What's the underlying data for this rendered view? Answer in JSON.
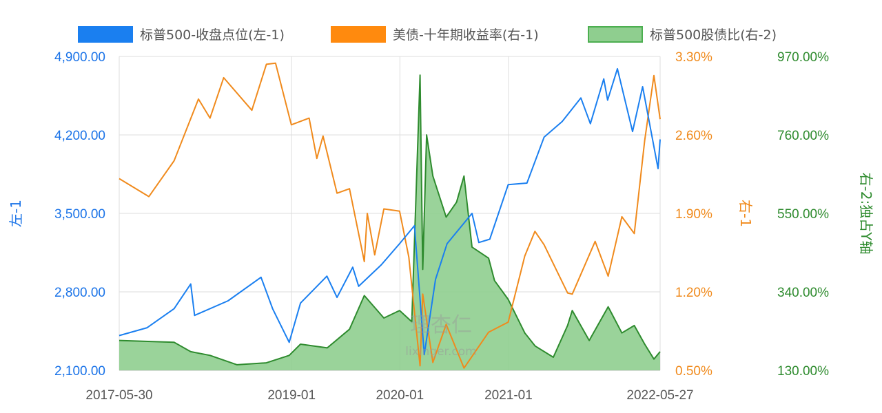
{
  "chart_data": {
    "type": "line",
    "legend_placement": "top",
    "grid": true,
    "x_ticks": [
      "2017-05-30",
      "2019-01",
      "2020-01",
      "2021-01",
      "2022-05-27"
    ],
    "x_range": [
      "2017-05-30",
      "2022-05-27"
    ],
    "axes": {
      "left": {
        "label": "左-1",
        "range": [
          2100,
          4900
        ],
        "ticks": [
          "2,100.00",
          "2,800.00",
          "3,500.00",
          "4,200.00",
          "4,900.00"
        ],
        "color": "#1a73e8"
      },
      "right1": {
        "label": "右-1",
        "range": [
          0.5,
          3.3
        ],
        "ticks": [
          "0.50%",
          "1.20%",
          "1.90%",
          "2.60%",
          "3.30%"
        ],
        "color": "#f08a1c"
      },
      "right2": {
        "label": "右-2:独占Y轴",
        "range": [
          130,
          970
        ],
        "ticks": [
          "130.00%",
          "340.00%",
          "550.00%",
          "760.00%",
          "970.00%"
        ],
        "color": "#2e8b2e"
      }
    },
    "series": [
      {
        "name": "标普500-收盘点位(左-1)",
        "axis": "left",
        "kind": "line",
        "color": "#1a7ff0",
        "points": [
          [
            "2017-05-30",
            2410
          ],
          [
            "2017-09-01",
            2480
          ],
          [
            "2017-12-01",
            2650
          ],
          [
            "2018-01-26",
            2870
          ],
          [
            "2018-02-08",
            2590
          ],
          [
            "2018-06-01",
            2720
          ],
          [
            "2018-09-20",
            2930
          ],
          [
            "2018-10-29",
            2650
          ],
          [
            "2018-12-24",
            2350
          ],
          [
            "2019-01-31",
            2700
          ],
          [
            "2019-04-30",
            2940
          ],
          [
            "2019-06-03",
            2750
          ],
          [
            "2019-07-26",
            3020
          ],
          [
            "2019-08-15",
            2850
          ],
          [
            "2019-10-30",
            3040
          ],
          [
            "2019-12-31",
            3230
          ],
          [
            "2020-02-19",
            3390
          ],
          [
            "2020-03-23",
            2240
          ],
          [
            "2020-04-30",
            2910
          ],
          [
            "2020-06-08",
            3230
          ],
          [
            "2020-08-31",
            3500
          ],
          [
            "2020-09-23",
            3240
          ],
          [
            "2020-10-30",
            3270
          ],
          [
            "2020-12-31",
            3756
          ],
          [
            "2021-03-04",
            3770
          ],
          [
            "2021-05-01",
            4180
          ],
          [
            "2021-07-01",
            4320
          ],
          [
            "2021-09-02",
            4530
          ],
          [
            "2021-10-04",
            4300
          ],
          [
            "2021-11-18",
            4700
          ],
          [
            "2021-12-01",
            4510
          ],
          [
            "2022-01-03",
            4790
          ],
          [
            "2022-02-23",
            4230
          ],
          [
            "2022-03-29",
            4630
          ],
          [
            "2022-05-20",
            3900
          ],
          [
            "2022-05-27",
            4160
          ]
        ]
      },
      {
        "name": "美债-十年期收益率(右-1)",
        "axis": "right1",
        "kind": "line",
        "color": "#f08a1c",
        "points": [
          [
            "2017-05-30",
            2.21
          ],
          [
            "2017-09-07",
            2.05
          ],
          [
            "2017-12-01",
            2.37
          ],
          [
            "2018-02-21",
            2.92
          ],
          [
            "2018-04-01",
            2.75
          ],
          [
            "2018-05-17",
            3.11
          ],
          [
            "2018-08-20",
            2.82
          ],
          [
            "2018-10-08",
            3.23
          ],
          [
            "2018-11-08",
            3.24
          ],
          [
            "2018-12-31",
            2.69
          ],
          [
            "2019-03-01",
            2.75
          ],
          [
            "2019-03-27",
            2.39
          ],
          [
            "2019-04-17",
            2.59
          ],
          [
            "2019-06-03",
            2.08
          ],
          [
            "2019-07-15",
            2.12
          ],
          [
            "2019-09-03",
            1.47
          ],
          [
            "2019-09-13",
            1.9
          ],
          [
            "2019-10-08",
            1.53
          ],
          [
            "2019-11-08",
            1.94
          ],
          [
            "2019-12-31",
            1.92
          ],
          [
            "2020-01-31",
            1.51
          ],
          [
            "2020-03-09",
            0.54
          ],
          [
            "2020-03-18",
            1.18
          ],
          [
            "2020-04-21",
            0.57
          ],
          [
            "2020-06-05",
            0.91
          ],
          [
            "2020-08-04",
            0.52
          ],
          [
            "2020-10-26",
            0.84
          ],
          [
            "2020-12-31",
            0.93
          ],
          [
            "2021-02-25",
            1.52
          ],
          [
            "2021-03-31",
            1.74
          ],
          [
            "2021-05-01",
            1.62
          ],
          [
            "2021-07-19",
            1.19
          ],
          [
            "2021-08-04",
            1.18
          ],
          [
            "2021-10-20",
            1.65
          ],
          [
            "2021-12-03",
            1.34
          ],
          [
            "2022-01-18",
            1.87
          ],
          [
            "2022-03-01",
            1.72
          ],
          [
            "2022-04-05",
            2.55
          ],
          [
            "2022-05-06",
            3.13
          ],
          [
            "2022-05-27",
            2.74
          ]
        ]
      },
      {
        "name": "标普500股债比(右-2)",
        "axis": "right2",
        "kind": "area",
        "color": "#2e8b2e",
        "fill": "#8fce8f",
        "points": [
          [
            "2017-05-30",
            210
          ],
          [
            "2017-12-01",
            205
          ],
          [
            "2018-01-26",
            180
          ],
          [
            "2018-04-01",
            170
          ],
          [
            "2018-07-01",
            145
          ],
          [
            "2018-10-08",
            150
          ],
          [
            "2018-12-24",
            170
          ],
          [
            "2019-01-31",
            200
          ],
          [
            "2019-05-01",
            190
          ],
          [
            "2019-07-15",
            240
          ],
          [
            "2019-09-03",
            330
          ],
          [
            "2019-11-08",
            270
          ],
          [
            "2019-12-31",
            290
          ],
          [
            "2020-02-10",
            260
          ],
          [
            "2020-03-09",
            920
          ],
          [
            "2020-03-18",
            400
          ],
          [
            "2020-03-31",
            760
          ],
          [
            "2020-04-21",
            650
          ],
          [
            "2020-06-05",
            540
          ],
          [
            "2020-07-10",
            580
          ],
          [
            "2020-08-04",
            650
          ],
          [
            "2020-08-31",
            460
          ],
          [
            "2020-10-26",
            430
          ],
          [
            "2020-11-15",
            370
          ],
          [
            "2020-12-31",
            320
          ],
          [
            "2021-02-25",
            230
          ],
          [
            "2021-04-01",
            195
          ],
          [
            "2021-06-01",
            165
          ],
          [
            "2021-07-19",
            250
          ],
          [
            "2021-08-04",
            290
          ],
          [
            "2021-09-30",
            210
          ],
          [
            "2021-12-03",
            300
          ],
          [
            "2022-01-18",
            230
          ],
          [
            "2022-03-01",
            250
          ],
          [
            "2022-04-05",
            200
          ],
          [
            "2022-05-06",
            160
          ],
          [
            "2022-05-27",
            180
          ]
        ]
      }
    ]
  },
  "watermark": {
    "text": "理杏仁",
    "sub": "lixinger.com"
  }
}
